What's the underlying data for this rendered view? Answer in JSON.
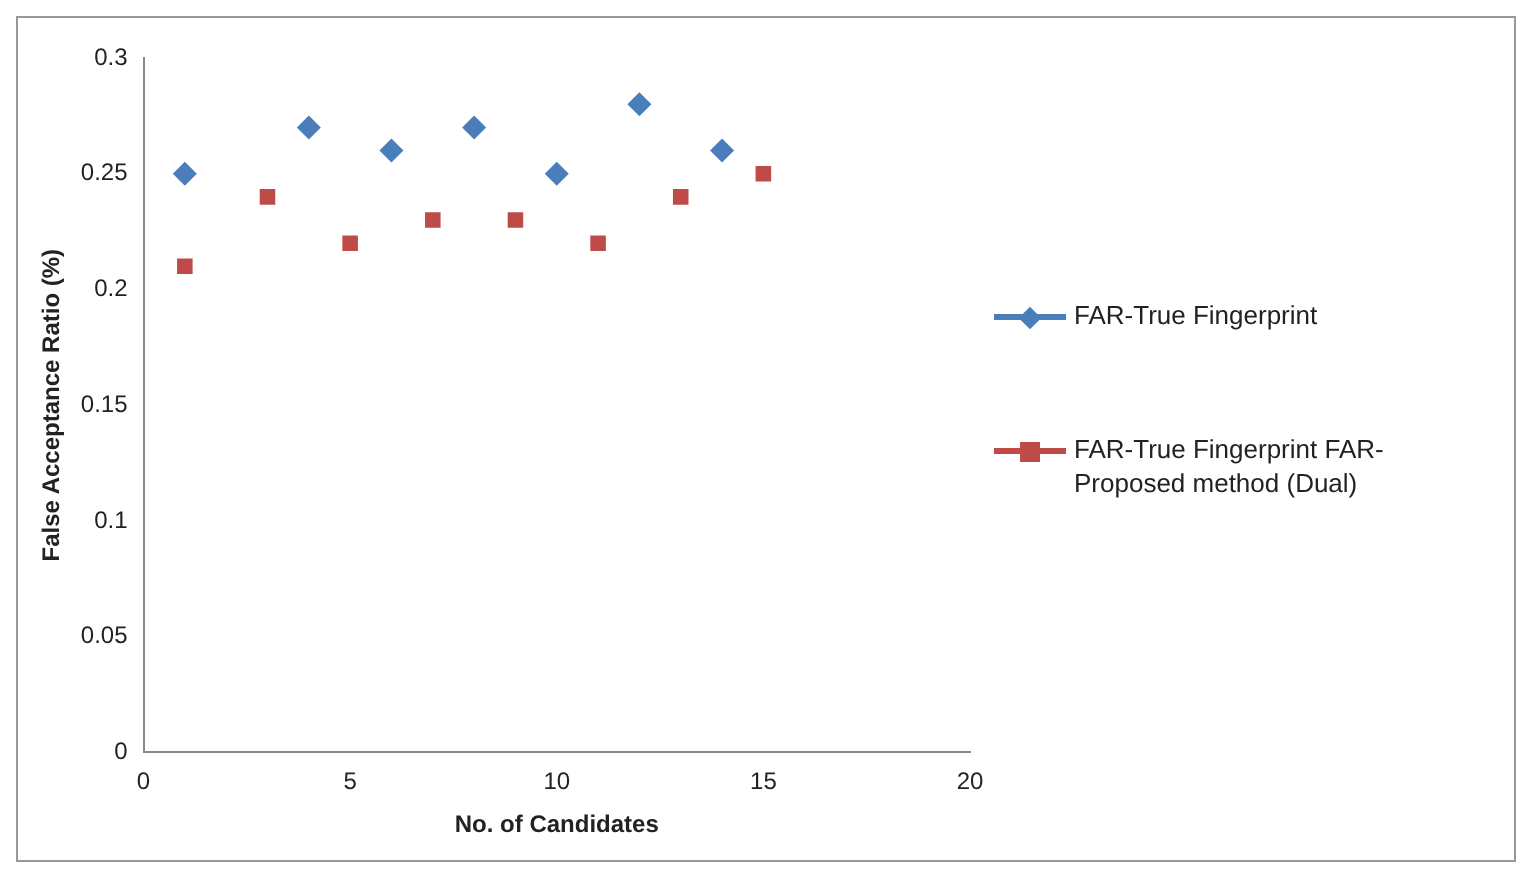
{
  "chart_data": {
    "type": "scatter",
    "xlabel": "No. of Candidates",
    "ylabel": "False Acceptance Ratio (%)",
    "xlim": [
      0,
      20
    ],
    "xticks": [
      0,
      5,
      10,
      15,
      20
    ],
    "ylim": [
      0,
      0.3
    ],
    "yticks": [
      0,
      0.05,
      0.1,
      0.15,
      0.2,
      0.25,
      0.3
    ],
    "grid": false,
    "legend": "right",
    "series": [
      {
        "name": "FAR-True Fingerprint",
        "color": "#4a7ebb",
        "marker": "diamond",
        "x": [
          1,
          4,
          6,
          8,
          10,
          12,
          14
        ],
        "values": [
          0.25,
          0.27,
          0.26,
          0.27,
          0.25,
          0.28,
          0.26
        ]
      },
      {
        "name": "FAR-True Fingerprint FAR-Proposed method (Dual)",
        "color": "#be4b48",
        "marker": "square",
        "x": [
          1,
          3,
          5,
          7,
          9,
          11,
          13,
          15
        ],
        "values": [
          0.21,
          0.24,
          0.22,
          0.23,
          0.23,
          0.22,
          0.24,
          0.25
        ]
      }
    ]
  }
}
